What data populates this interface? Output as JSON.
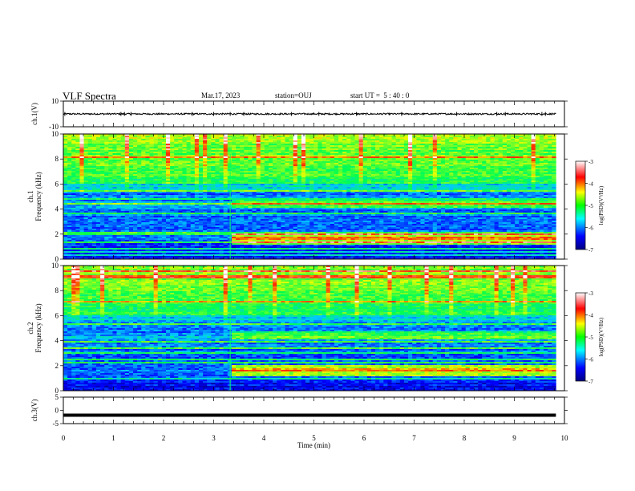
{
  "header": {
    "title": "VLF Spectra",
    "date": "Mar.17, 2023",
    "station": "station=OUJ",
    "start": "start UT =  5 : 40 : 0"
  },
  "chart_data": [
    {
      "type": "line",
      "name": "ch1-waveform",
      "ylabel": "ch.1(V)",
      "ylim": [
        -10,
        10
      ],
      "yticks": [
        "10",
        "-10"
      ],
      "xlim": [
        0,
        10
      ],
      "line_color": "#000000",
      "baseline": 0.0,
      "spikes_min": [
        0.03,
        1.15,
        1.22,
        1.35,
        2.57,
        3.0,
        3.33,
        3.6,
        4.55,
        5.1,
        5.85,
        6.75,
        7.85,
        8.65,
        8.82,
        9.55,
        9.62
      ]
    },
    {
      "type": "heatmap",
      "name": "ch1-spectrogram",
      "ylabel": "ch.1\nFrequency (kHz)",
      "ylim": [
        0,
        10
      ],
      "yticks": [
        "0",
        "2",
        "4",
        "6",
        "8",
        "10"
      ],
      "xlim": [
        0,
        9.83
      ],
      "step_time_min": 3.33,
      "colorbar": {
        "label": "log(PSD)(V²/Hz)",
        "range": [
          -7,
          -3
        ],
        "ticks": [
          "-3",
          "-4",
          "-5",
          "-6",
          "-7"
        ]
      }
    },
    {
      "type": "heatmap",
      "name": "ch2-spectrogram",
      "ylabel": "ch.2\nFrequency (kHz)",
      "ylim": [
        0,
        10
      ],
      "yticks": [
        "0",
        "2",
        "4",
        "6",
        "8",
        "10"
      ],
      "xlim": [
        0,
        9.83
      ],
      "step_time_min": 3.33,
      "colorbar": {
        "label": "log(PSD)(V²/Hz)",
        "range": [
          -7,
          -3
        ],
        "ticks": [
          "-3",
          "-4",
          "-5",
          "-6",
          "-7"
        ]
      }
    },
    {
      "type": "line",
      "name": "ch3-waveform",
      "ylabel": "ch.3(V)",
      "ylim": [
        -5,
        5
      ],
      "yticks": [
        "5",
        "0",
        "-5"
      ],
      "xlim": [
        0,
        10
      ],
      "line_color": "#000000",
      "constant_value": -1.8
    }
  ],
  "x_axis": {
    "label": "Time (min)",
    "ticks": [
      "0",
      "1",
      "2",
      "3",
      "4",
      "5",
      "6",
      "7",
      "8",
      "9",
      "10"
    ]
  },
  "colors": {
    "spectrum_low": "#000080",
    "spectrum_mid": "#00ff00",
    "spectrum_high": "#ff0000"
  }
}
